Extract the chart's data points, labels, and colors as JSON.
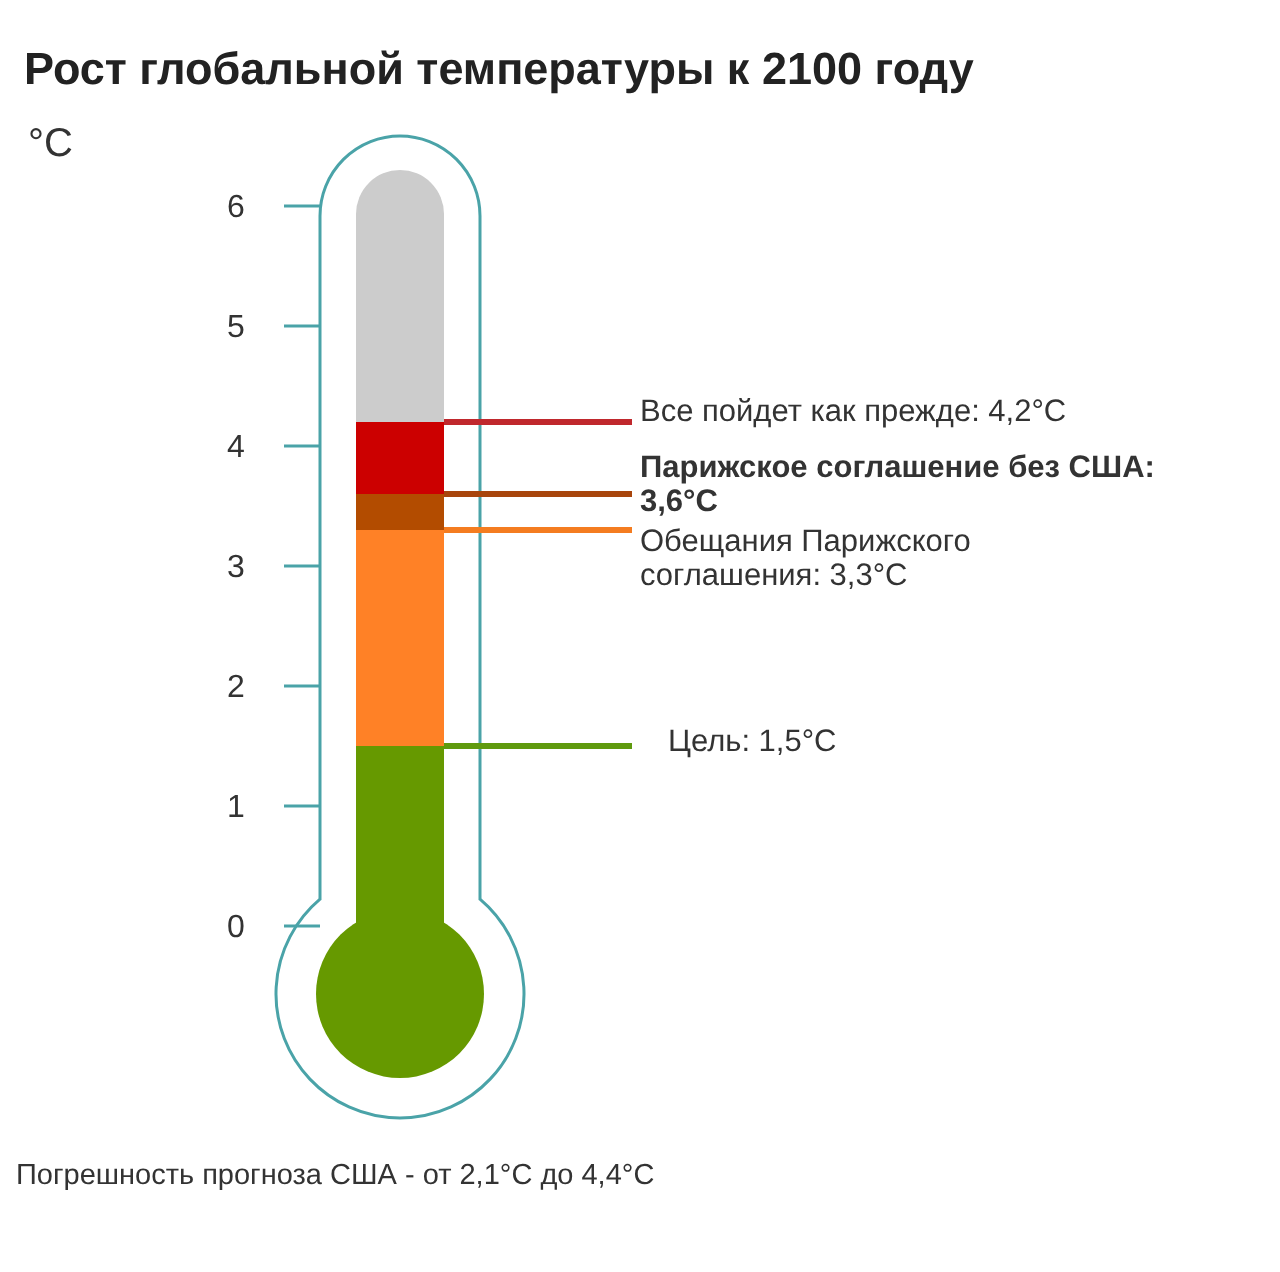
{
  "chart_data": {
    "type": "bar",
    "title": "Рост глобальной температуры к 2100 году",
    "ylabel": "°C",
    "stacked": true,
    "categories": [
      null
    ],
    "series": [
      {
        "color": "#669900",
        "values": [
          1.5
        ]
      },
      {
        "color": "#ff8126",
        "values": [
          1.8
        ]
      },
      {
        "color": "#b34c00",
        "values": [
          0.3
        ]
      },
      {
        "color": "#cc0000",
        "values": [
          0.6
        ]
      }
    ],
    "ylim": [
      0,
      6
    ],
    "yticks": [
      0,
      1,
      2,
      3,
      4,
      5,
      6
    ],
    "grid": false,
    "legend": false,
    "ref_lines": [
      {
        "axis": "y",
        "value": 4.2,
        "label": "Все пойдет как прежде: 4,2°C",
        "color": "#c0282d"
      },
      {
        "axis": "y",
        "value": 3.6,
        "label": "Парижское соглашение без США: 3,6°C",
        "color": "#a8450c"
      },
      {
        "axis": "y",
        "value": 3.3,
        "label": "Обещания Парижского соглашения: 3,3°C",
        "color": "#f47c20"
      },
      {
        "axis": "y",
        "value": 1.5,
        "label": "Цель: 1,5°C",
        "color": "#5f9a0e"
      }
    ],
    "annotations": [
      "Погрешность прогноза США - от 2,1°C до 4,4°C"
    ]
  }
}
